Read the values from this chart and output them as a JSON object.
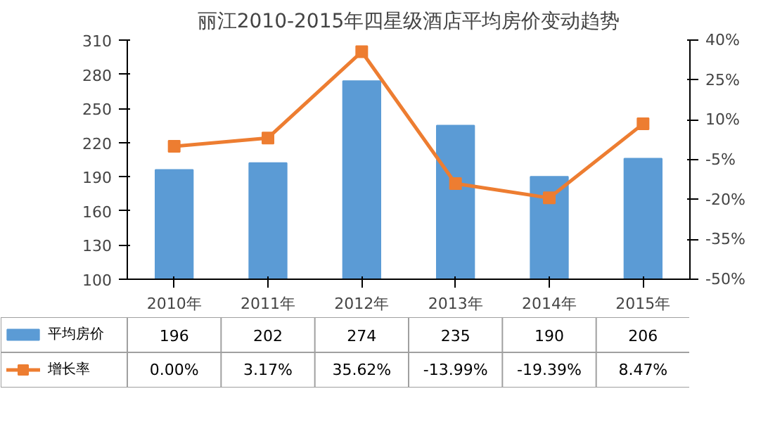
{
  "chart_data": {
    "type": "bar",
    "title": "丽江2010-2015年四星级酒店平均房价变动趋势",
    "categories": [
      "2010年",
      "2011年",
      "2012年",
      "2013年",
      "2014年",
      "2015年"
    ],
    "series": [
      {
        "name": "平均房价",
        "color": "#5b9bd5",
        "values": [
          196,
          202,
          274,
          235,
          190,
          206
        ],
        "value_labels": [
          "196",
          "202",
          "274",
          "235",
          "190",
          "206"
        ]
      },
      {
        "name": "增长率",
        "type": "line",
        "axis": "y2",
        "color": "#ed7d31",
        "marker": "square",
        "values": [
          0.0,
          3.17,
          35.62,
          -13.99,
          -19.39,
          8.47
        ],
        "value_labels": [
          "0.00%",
          "3.17%",
          "35.62%",
          "-13.99%",
          "-19.39%",
          "8.47%"
        ]
      }
    ],
    "ylim": [
      100,
      310
    ],
    "yticks": [
      100,
      130,
      160,
      190,
      220,
      250,
      280,
      310
    ],
    "y2lim": [
      -50,
      40
    ],
    "y2ticks": [
      {
        "value": -50,
        "label": "-50%"
      },
      {
        "value": -35,
        "label": "-35%"
      },
      {
        "value": -20,
        "label": "-20%"
      },
      {
        "value": -5,
        "label": "-5%"
      },
      {
        "value": 10,
        "label": "10%"
      },
      {
        "value": 25,
        "label": "25%"
      },
      {
        "value": 40,
        "label": "40%"
      }
    ],
    "legend": "bottom"
  }
}
